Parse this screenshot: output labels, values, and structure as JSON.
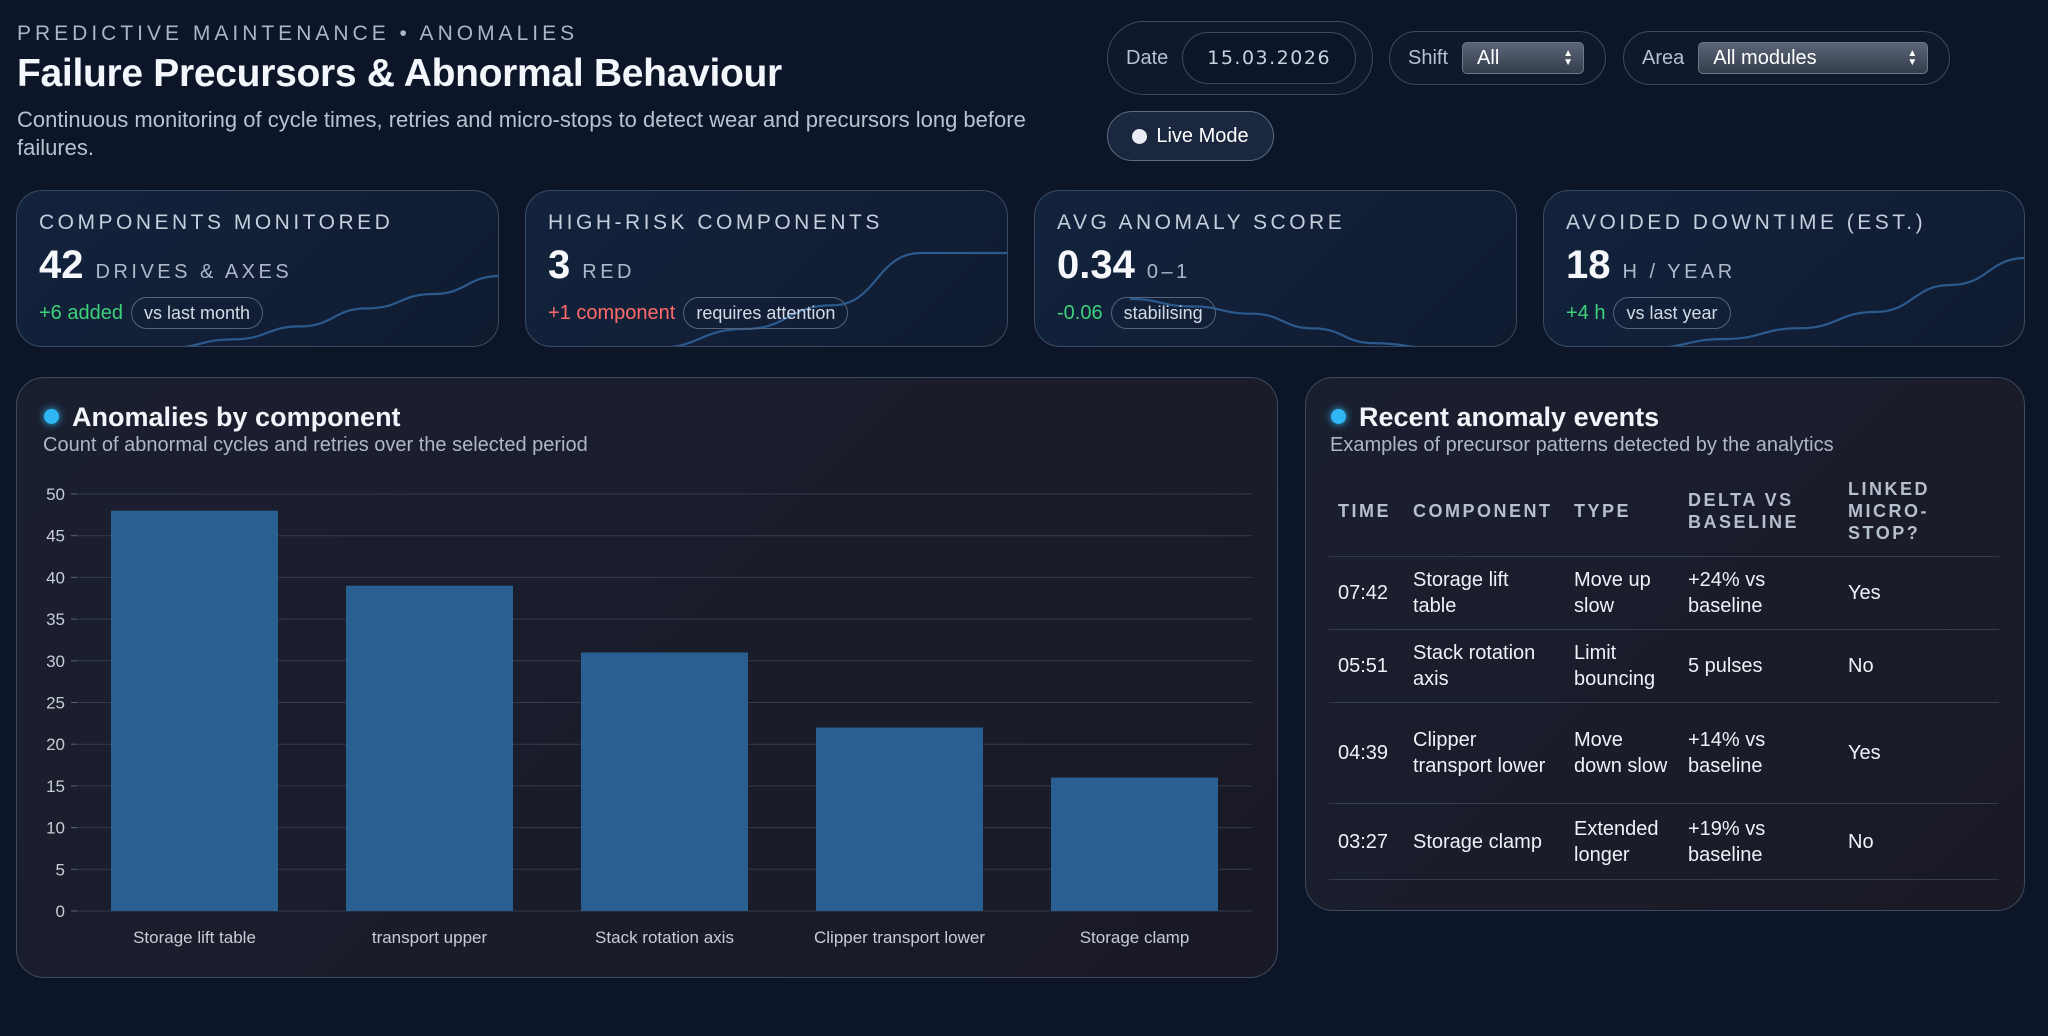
{
  "header": {
    "eyebrow": "PREDICTIVE MAINTENANCE • ANOMALIES",
    "title": "Failure Precursors & Abnormal Behaviour",
    "subtitle": "Continuous monitoring of cycle times, retries and micro-stops to detect wear and precursors long before failures."
  },
  "filters": {
    "date_label": "Date",
    "date_value": "15.03.2026",
    "shift_label": "Shift",
    "shift_value": "All",
    "area_label": "Area",
    "area_value": "All modules",
    "live_label": "Live Mode"
  },
  "kpis": [
    {
      "label": "COMPONENTS MONITORED",
      "value": "42",
      "unit": "DRIVES & AXES",
      "delta": "+6 added",
      "chip": "vs last month",
      "trend": "good",
      "spark": [
        0.0,
        0.12,
        0.3,
        0.55,
        0.75,
        1.0
      ]
    },
    {
      "label": "HIGH-RISK COMPONENTS",
      "value": "3",
      "unit": "RED",
      "delta": "+1 component",
      "chip": "requires attention",
      "trend": "bad",
      "spark": [
        0.0,
        0.2,
        0.45,
        1.0,
        1.0
      ]
    },
    {
      "label": "AVG ANOMALY SCORE",
      "value": "0.34",
      "unit": "0–1",
      "delta": "-0.06",
      "chip": "stabilising",
      "trend": "good",
      "spark": [
        1.0,
        0.85,
        0.7,
        0.4,
        0.1,
        0.0
      ]
    },
    {
      "label": "AVOIDED DOWNTIME (EST.)",
      "value": "18",
      "unit": "H / YEAR",
      "delta": "+4 h",
      "chip": "vs last year",
      "trend": "good",
      "spark": [
        0.0,
        0.1,
        0.22,
        0.4,
        0.7,
        1.0
      ]
    }
  ],
  "chart_panel": {
    "title": "Anomalies by component",
    "subtitle": "Count of abnormal cycles and retries over the selected period"
  },
  "chart_data": {
    "type": "bar",
    "title": "Anomalies by component",
    "categories": [
      "Storage lift table",
      "transport upper",
      "Stack rotation axis",
      "Clipper transport lower",
      "Storage clamp"
    ],
    "values": [
      48,
      39,
      31,
      22,
      16
    ],
    "ylim": [
      0,
      50
    ],
    "yticks": [
      0,
      5,
      10,
      15,
      20,
      25,
      30,
      35,
      40,
      45,
      50
    ],
    "grid": true,
    "bar_color": "#2a5f92"
  },
  "events_panel": {
    "title": "Recent anomaly events",
    "subtitle": "Examples of precursor patterns detected by the analytics",
    "columns": [
      "TIME",
      "COMPONENT",
      "TYPE",
      "DELTA VS BASELINE",
      "LINKED MICRO-STOP?"
    ],
    "rows": [
      [
        "07:42",
        "Storage lift table",
        "Move up slow",
        "+24% vs baseline",
        "Yes"
      ],
      [
        "05:51",
        "Stack rotation axis",
        "Limit bouncing",
        "5 pulses",
        "No"
      ],
      [
        "04:39",
        "Clipper transport lower",
        "Move down slow",
        "+14% vs baseline",
        "Yes"
      ],
      [
        "03:27",
        "Storage clamp",
        "Extended longer",
        "+19% vs baseline",
        "No"
      ]
    ]
  }
}
